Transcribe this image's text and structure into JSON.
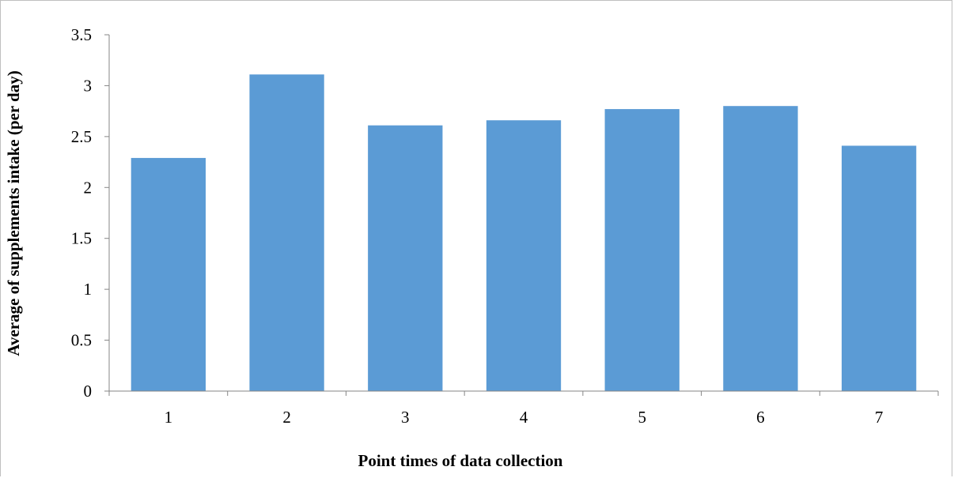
{
  "chart_data": {
    "type": "bar",
    "categories": [
      "1",
      "2",
      "3",
      "4",
      "5",
      "6",
      "7"
    ],
    "values": [
      2.29,
      3.11,
      2.61,
      2.66,
      2.77,
      2.8,
      2.41
    ],
    "title": "",
    "xlabel": "Point times of data collection",
    "ylabel": "Average of supplements intake (per day)",
    "ylim": [
      0,
      3.5
    ],
    "yticks": [
      "0",
      "0.5",
      "1",
      "1.5",
      "2",
      "2.5",
      "3",
      "3.5"
    ],
    "grid": false,
    "legend": "none",
    "bar_color": "#5b9bd5",
    "axis_color": "#868686"
  }
}
